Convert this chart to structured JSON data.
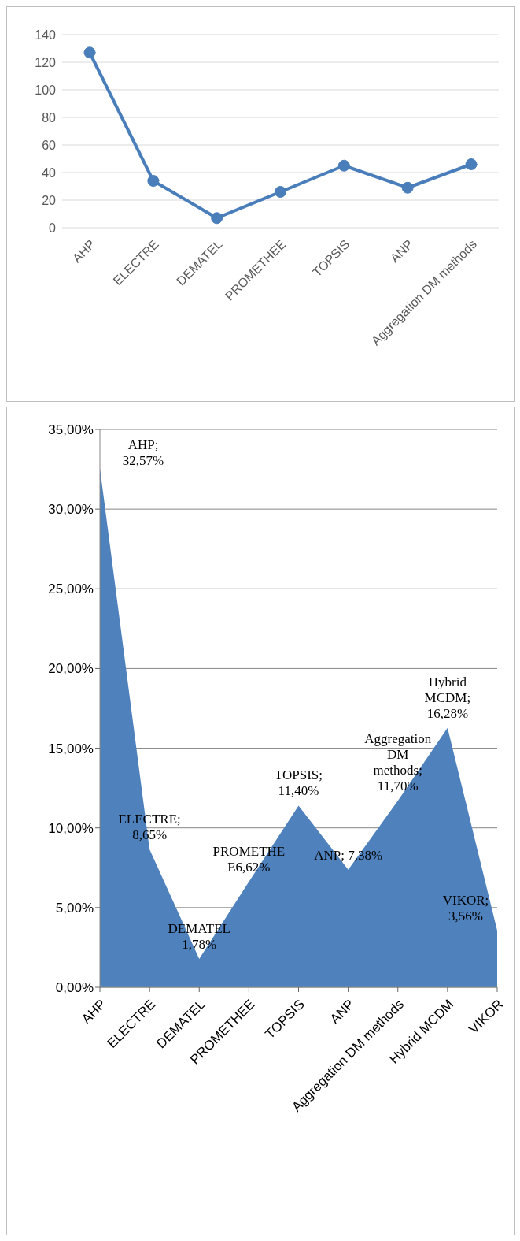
{
  "chart_data": [
    {
      "type": "line",
      "categories": [
        "AHP",
        "ELECTRE",
        "DEMATEL",
        "PROMETHEE",
        "TOPSIS",
        "ANP",
        "Aggregation DM methods"
      ],
      "series": [
        {
          "color": "#4a7ebb",
          "values": [
            127,
            34,
            7,
            26,
            45,
            29,
            46
          ]
        }
      ],
      "ylim": [
        0,
        140
      ],
      "yticks": [
        0,
        20,
        40,
        60,
        80,
        100,
        120,
        140
      ],
      "grid": "y",
      "marker": "circle"
    },
    {
      "type": "area",
      "categories": [
        "AHP",
        "ELECTRE",
        "DEMATEL",
        "PROMETHEE",
        "TOPSIS",
        "ANP",
        "Aggregation DM methods",
        "Hybrid MCDM",
        "VIKOR"
      ],
      "series": [
        {
          "color": "#4f81bd",
          "values": [
            32.57,
            8.65,
            1.78,
            6.62,
            11.4,
            7.38,
            11.7,
            16.28,
            3.56
          ],
          "value_labels": [
            "AHP; 32,57%",
            "ELECTRE; 8,65%",
            "DEMATEL 1,78%",
            "PROMETHE E6,62%",
            "TOPSIS; 11,40%",
            "ANP; 7,38%",
            "Aggregation DM methods; 11,70%",
            "Hybrid MCDM; 16,28%",
            "VIKOR; 3,56%"
          ]
        }
      ],
      "ylim": [
        0,
        35
      ],
      "yticks": [
        {
          "value": 0,
          "label": "0,00%"
        },
        {
          "value": 5,
          "label": "5,00%"
        },
        {
          "value": 10,
          "label": "10,00%"
        },
        {
          "value": 15,
          "label": "15,00%"
        },
        {
          "value": 20,
          "label": "20,00%"
        },
        {
          "value": 25,
          "label": "25,00%"
        },
        {
          "value": 30,
          "label": "30,00%"
        },
        {
          "value": 35,
          "label": "35,00%"
        }
      ],
      "grid": "y"
    }
  ]
}
